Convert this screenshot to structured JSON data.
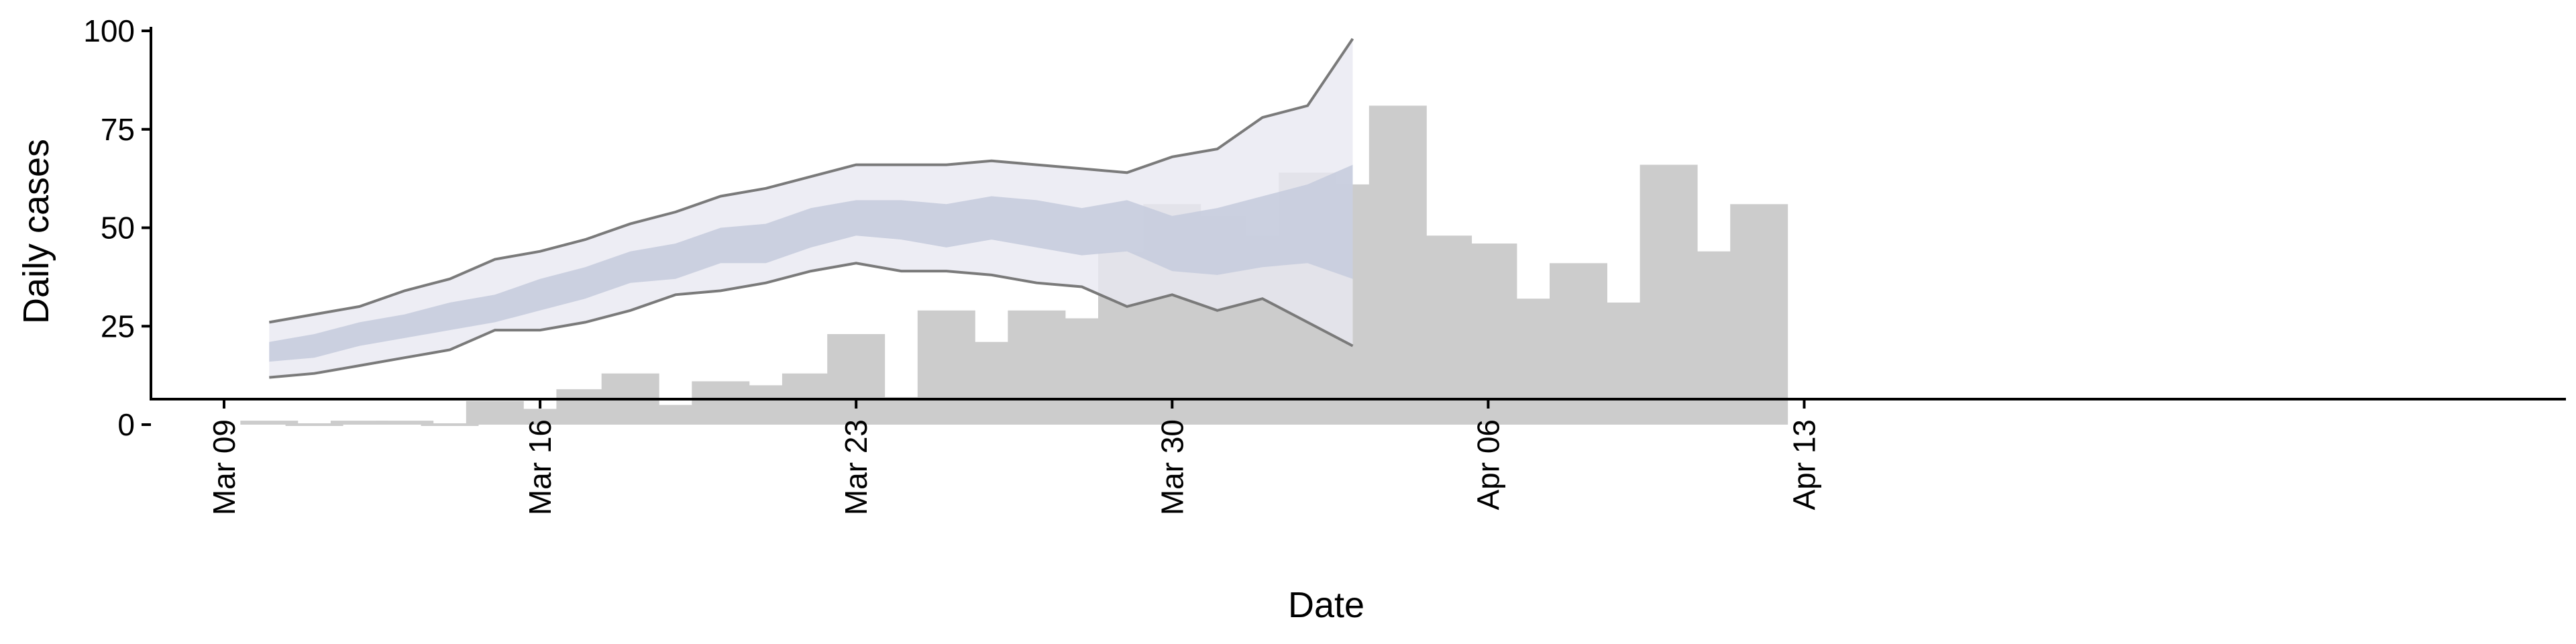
{
  "chart_data": {
    "type": "bar",
    "title": "",
    "xlabel": "Date",
    "ylabel": "Daily cases",
    "ylim": [
      -5,
      102
    ],
    "xlim": [
      "2020-03-09",
      "2020-04-13"
    ],
    "y_ticks": [
      0,
      25,
      50,
      75,
      100
    ],
    "x_ticks": [
      {
        "date": "2020-03-09",
        "label": "Mar 09"
      },
      {
        "date": "2020-03-16",
        "label": "Mar 16"
      },
      {
        "date": "2020-03-23",
        "label": "Mar 23"
      },
      {
        "date": "2020-03-30",
        "label": "Mar 30"
      },
      {
        "date": "2020-04-06",
        "label": "Apr 06"
      },
      {
        "date": "2020-04-13",
        "label": "Apr 13"
      }
    ],
    "grid": false,
    "colors": {
      "bars": "#cccccc",
      "band_outer": "#e8e9f1",
      "band_inner": "#c6cbdd",
      "band_line": "#7a7a7a",
      "axis": "#000000"
    },
    "bars": {
      "dates": [
        "2020-03-10",
        "2020-03-11",
        "2020-03-12",
        "2020-03-13",
        "2020-03-14",
        "2020-03-15",
        "2020-03-16",
        "2020-03-17",
        "2020-03-18",
        "2020-03-19",
        "2020-03-20",
        "2020-03-21",
        "2020-03-22",
        "2020-03-23",
        "2020-03-24",
        "2020-03-25",
        "2020-03-26",
        "2020-03-27",
        "2020-03-28",
        "2020-03-29",
        "2020-03-30",
        "2020-03-31",
        "2020-04-01",
        "2020-04-02",
        "2020-04-03",
        "2020-04-04",
        "2020-04-05",
        "2020-04-06",
        "2020-04-07",
        "2020-04-08",
        "2020-04-09",
        "2020-04-10",
        "2020-04-11",
        "2020-04-12"
      ],
      "values": [
        1,
        0,
        1,
        1,
        0,
        6,
        4,
        9,
        13,
        5,
        11,
        10,
        13,
        23,
        7,
        29,
        21,
        29,
        27,
        44,
        56,
        53,
        48,
        64,
        61,
        81,
        48,
        46,
        32,
        41,
        31,
        66,
        44,
        56
      ]
    },
    "forecast": {
      "dates": [
        "2020-03-10",
        "2020-03-11",
        "2020-03-12",
        "2020-03-13",
        "2020-03-14",
        "2020-03-15",
        "2020-03-16",
        "2020-03-17",
        "2020-03-18",
        "2020-03-19",
        "2020-03-20",
        "2020-03-21",
        "2020-03-22",
        "2020-03-23",
        "2020-03-24",
        "2020-03-25",
        "2020-03-26",
        "2020-03-27",
        "2020-03-28",
        "2020-03-29",
        "2020-03-30",
        "2020-03-31",
        "2020-04-01",
        "2020-04-02",
        "2020-04-03"
      ],
      "upper90": [
        26,
        28,
        30,
        34,
        37,
        42,
        44,
        47,
        51,
        54,
        58,
        60,
        63,
        66,
        66,
        66,
        67,
        66,
        65,
        64,
        68,
        70,
        78,
        81,
        98
      ],
      "upper50": [
        21,
        23,
        26,
        28,
        31,
        33,
        37,
        40,
        44,
        46,
        50,
        51,
        55,
        57,
        57,
        56,
        58,
        57,
        55,
        57,
        53,
        55,
        58,
        61,
        66
      ],
      "lower50": [
        16,
        17,
        20,
        22,
        24,
        26,
        29,
        32,
        36,
        37,
        41,
        41,
        45,
        48,
        47,
        45,
        47,
        45,
        43,
        44,
        39,
        38,
        40,
        41,
        37
      ],
      "lower90": [
        12,
        13,
        15,
        17,
        19,
        24,
        24,
        26,
        29,
        33,
        34,
        36,
        39,
        41,
        39,
        39,
        38,
        36,
        35,
        30,
        33,
        29,
        32,
        26,
        20
      ]
    }
  }
}
